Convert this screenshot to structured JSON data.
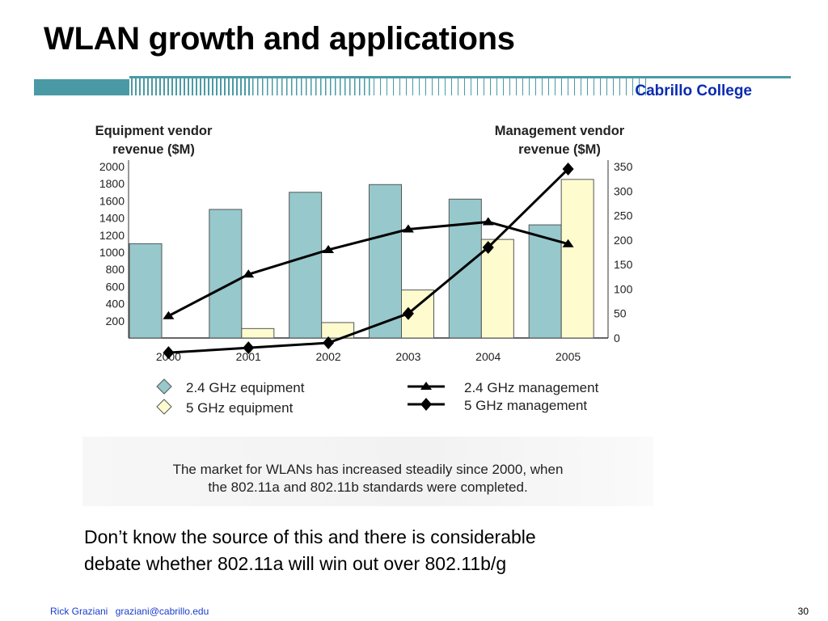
{
  "slide": {
    "title": "WLAN growth and applications",
    "brand": "Cabrillo College",
    "caption_line1": "The market for WLANs has increased steadily since 2000, when",
    "caption_line2": "the 802.11a and 802.11b standards were completed.",
    "note_line1": "Don’t know the source of this and there is considerable",
    "note_line2": "debate whether 802.11a will win out over 802.11b/g",
    "footer_name": "Rick Graziani",
    "footer_email": "graziani@cabrillo.edu",
    "page_number": "30"
  },
  "colors": {
    "accent": "#4a9aa5",
    "brand": "#0a2bb0",
    "bar_24": "#96c8cc",
    "bar_5": "#fefccf",
    "line": "#000000"
  },
  "chart_data": {
    "type": "bar",
    "left_axis_title": [
      "Equipment vendor",
      "revenue ($M)"
    ],
    "right_axis_title": [
      "Management vendor",
      "revenue ($M)"
    ],
    "categories": [
      "2000",
      "2001",
      "2002",
      "2003",
      "2004",
      "2005"
    ],
    "left_ticks": [
      "2000",
      "1800",
      "1600",
      "1400",
      "1200",
      "1000",
      "800",
      "600",
      "400",
      "200"
    ],
    "right_ticks": [
      "350",
      "300",
      "250",
      "200",
      "150",
      "100",
      "50",
      "0"
    ],
    "ylim_left": [
      0,
      2000
    ],
    "ylim_right": [
      0,
      350
    ],
    "bar_series": [
      {
        "name": "2.4 GHz equipment",
        "values": [
          1100,
          1500,
          1700,
          1790,
          1620,
          1320
        ]
      },
      {
        "name": "5 GHz equipment",
        "values": [
          0,
          110,
          180,
          560,
          1150,
          1850
        ]
      }
    ],
    "line_series": [
      {
        "name": "2.4 GHz management",
        "marker": "triangle",
        "values": [
          45,
          130,
          180,
          222,
          237,
          192
        ]
      },
      {
        "name": "5 GHz management",
        "marker": "diamond",
        "values": [
          -30,
          -20,
          -10,
          50,
          185,
          345
        ]
      }
    ],
    "legend": [
      {
        "label": "2.4 GHz equipment",
        "kind": "diamond",
        "color": "#96c8cc"
      },
      {
        "label": "5 GHz equipment",
        "kind": "diamond",
        "color": "#fefccf"
      },
      {
        "label": "2.4 GHz management",
        "kind": "line-triangle"
      },
      {
        "label": "5 GHz management",
        "kind": "line-diamond"
      }
    ],
    "legend_position": "bottom"
  }
}
